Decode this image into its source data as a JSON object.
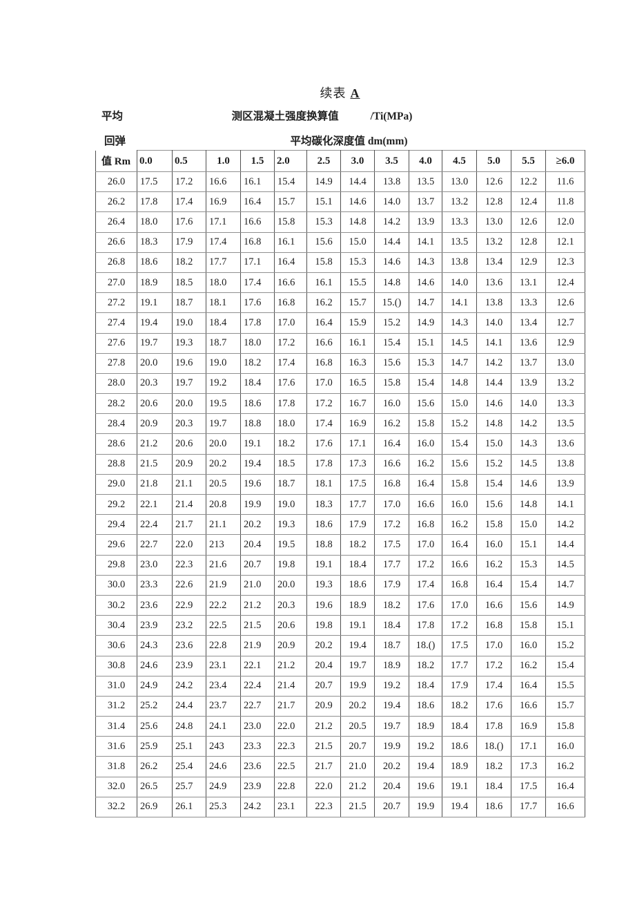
{
  "title": {
    "text": "续表",
    "mark": "A"
  },
  "header": {
    "avg_label": "平均",
    "strength_label": "测区混凝土强度换算值",
    "strength_unit": "/Ti(MPa)",
    "rebound_label": "回弹",
    "depth_label": "平均碳化深度值 dm(mm)",
    "corner_label": "值 Rm"
  },
  "table": {
    "columns": [
      "0.0",
      "0.5",
      "1.0",
      "1.5",
      "2.0",
      "2.5",
      "3.0",
      "3.5",
      "4.0",
      "4.5",
      "5.0",
      "5.5",
      "≥6.0"
    ],
    "rows": [
      {
        "rm": "26.0",
        "values": [
          "17.5",
          "17.2",
          "16.6",
          "16.1",
          "15.4",
          "14.9",
          "14.4",
          "13.8",
          "13.5",
          "13.0",
          "12.6",
          "12.2",
          "11.6"
        ]
      },
      {
        "rm": "26.2",
        "values": [
          "17.8",
          "17.4",
          "16.9",
          "16.4",
          "15.7",
          "15.1",
          "14.6",
          "14.0",
          "13.7",
          "13.2",
          "12.8",
          "12.4",
          "11.8"
        ]
      },
      {
        "rm": "26.4",
        "values": [
          "18.0",
          "17.6",
          "17.1",
          "16.6",
          "15.8",
          "15.3",
          "14.8",
          "14.2",
          "13.9",
          "13.3",
          "13.0",
          "12.6",
          "12.0"
        ]
      },
      {
        "rm": "26.6",
        "values": [
          "18.3",
          "17.9",
          "17.4",
          "16.8",
          "16.1",
          "15.6",
          "15.0",
          "14.4",
          "14.1",
          "13.5",
          "13.2",
          "12.8",
          "12.1"
        ]
      },
      {
        "rm": "26.8",
        "values": [
          "18.6",
          "18.2",
          "17.7",
          "17.1",
          "16.4",
          "15.8",
          "15.3",
          "14.6",
          "14.3",
          "13.8",
          "13.4",
          "12.9",
          "12.3"
        ]
      },
      {
        "rm": "27.0",
        "values": [
          "18.9",
          "18.5",
          "18.0",
          "17.4",
          "16.6",
          "16.1",
          "15.5",
          "14.8",
          "14.6",
          "14.0",
          "13.6",
          "13.1",
          "12.4"
        ]
      },
      {
        "rm": "27.2",
        "values": [
          "19.1",
          "18.7",
          "18.1",
          "17.6",
          "16.8",
          "16.2",
          "15.7",
          "15.()",
          "14.7",
          "14.1",
          "13.8",
          "13.3",
          "12.6"
        ]
      },
      {
        "rm": "27.4",
        "values": [
          "19.4",
          "19.0",
          "18.4",
          "17.8",
          "17.0",
          "16.4",
          "15.9",
          "15.2",
          "14.9",
          "14.3",
          "14.0",
          "13.4",
          "12.7"
        ]
      },
      {
        "rm": "27.6",
        "values": [
          "19.7",
          "19.3",
          "18.7",
          "18.0",
          "17.2",
          "16.6",
          "16.1",
          "15.4",
          "15.1",
          "14.5",
          "14.1",
          "13.6",
          "12.9"
        ]
      },
      {
        "rm": "27.8",
        "values": [
          "20.0",
          "19.6",
          "19.0",
          "18.2",
          "17.4",
          "16.8",
          "16.3",
          "15.6",
          "15.3",
          "14.7",
          "14.2",
          "13.7",
          "13.0"
        ]
      },
      {
        "rm": "28.0",
        "values": [
          "20.3",
          "19.7",
          "19.2",
          "18.4",
          "17.6",
          "17.0",
          "16.5",
          "15.8",
          "15.4",
          "14.8",
          "14.4",
          "13.9",
          "13.2"
        ]
      },
      {
        "rm": "28.2",
        "values": [
          "20.6",
          "20.0",
          "19.5",
          "18.6",
          "17.8",
          "17.2",
          "16.7",
          "16.0",
          "15.6",
          "15.0",
          "14.6",
          "14.0",
          "13.3"
        ]
      },
      {
        "rm": "28.4",
        "values": [
          "20.9",
          "20.3",
          "19.7",
          "18.8",
          "18.0",
          "17.4",
          "16.9",
          "16.2",
          "15.8",
          "15.2",
          "14.8",
          "14.2",
          "13.5"
        ]
      },
      {
        "rm": "28.6",
        "values": [
          "21.2",
          "20.6",
          "20.0",
          "19.1",
          "18.2",
          "17.6",
          "17.1",
          "16.4",
          "16.0",
          "15.4",
          "15.0",
          "14.3",
          "13.6"
        ]
      },
      {
        "rm": "28.8",
        "values": [
          "21.5",
          "20.9",
          "20.2",
          "19.4",
          "18.5",
          "17.8",
          "17.3",
          "16.6",
          "16.2",
          "15.6",
          "15.2",
          "14.5",
          "13.8"
        ]
      },
      {
        "rm": "29.0",
        "values": [
          "21.8",
          "21.1",
          "20.5",
          "19.6",
          "18.7",
          "18.1",
          "17.5",
          "16.8",
          "16.4",
          "15.8",
          "15.4",
          "14.6",
          "13.9"
        ]
      },
      {
        "rm": "29.2",
        "values": [
          "22.1",
          "21.4",
          "20.8",
          "19.9",
          "19.0",
          "18.3",
          "17.7",
          "17.0",
          "16.6",
          "16.0",
          "15.6",
          "14.8",
          "14.1"
        ]
      },
      {
        "rm": "29.4",
        "values": [
          "22.4",
          "21.7",
          "21.1",
          "20.2",
          "19.3",
          "18.6",
          "17.9",
          "17.2",
          "16.8",
          "16.2",
          "15.8",
          "15.0",
          "14.2"
        ]
      },
      {
        "rm": "29.6",
        "values": [
          "22.7",
          "22.0",
          "213",
          "20.4",
          "19.5",
          "18.8",
          "18.2",
          "17.5",
          "17.0",
          "16.4",
          "16.0",
          "15.1",
          "14.4"
        ]
      },
      {
        "rm": "29.8",
        "values": [
          "23.0",
          "22.3",
          "21.6",
          "20.7",
          "19.8",
          "19.1",
          "18.4",
          "17.7",
          "17.2",
          "16.6",
          "16.2",
          "15.3",
          "14.5"
        ]
      },
      {
        "rm": "30.0",
        "values": [
          "23.3",
          "22.6",
          "21.9",
          "21.0",
          "20.0",
          "19.3",
          "18.6",
          "17.9",
          "17.4",
          "16.8",
          "16.4",
          "15.4",
          "14.7"
        ]
      },
      {
        "rm": "30.2",
        "values": [
          "23.6",
          "22.9",
          "22.2",
          "21.2",
          "20.3",
          "19.6",
          "18.9",
          "18.2",
          "17.6",
          "17.0",
          "16.6",
          "15.6",
          "14.9"
        ]
      },
      {
        "rm": "30.4",
        "values": [
          "23.9",
          "23.2",
          "22.5",
          "21.5",
          "20.6",
          "19.8",
          "19.1",
          "18.4",
          "17.8",
          "17.2",
          "16.8",
          "15.8",
          "15.1"
        ]
      },
      {
        "rm": "30.6",
        "values": [
          "24.3",
          "23.6",
          "22.8",
          "21.9",
          "20.9",
          "20.2",
          "19.4",
          "18.7",
          "18.()",
          "17.5",
          "17.0",
          "16.0",
          "15.2"
        ]
      },
      {
        "rm": "30.8",
        "values": [
          "24.6",
          "23.9",
          "23.1",
          "22.1",
          "21.2",
          "20.4",
          "19.7",
          "18.9",
          "18.2",
          "17.7",
          "17.2",
          "16.2",
          "15.4"
        ]
      },
      {
        "rm": "31.0",
        "values": [
          "24.9",
          "24.2",
          "23.4",
          "22.4",
          "21.4",
          "20.7",
          "19.9",
          "19.2",
          "18.4",
          "17.9",
          "17.4",
          "16.4",
          "15.5"
        ]
      },
      {
        "rm": "31.2",
        "values": [
          "25.2",
          "24.4",
          "23.7",
          "22.7",
          "21.7",
          "20.9",
          "20.2",
          "19.4",
          "18.6",
          "18.2",
          "17.6",
          "16.6",
          "15.7"
        ]
      },
      {
        "rm": "31.4",
        "values": [
          "25.6",
          "24.8",
          "24.1",
          "23.0",
          "22.0",
          "21.2",
          "20.5",
          "19.7",
          "18.9",
          "18.4",
          "17.8",
          "16.9",
          "15.8"
        ]
      },
      {
        "rm": "31.6",
        "values": [
          "25.9",
          "25.1",
          "243",
          "23.3",
          "22.3",
          "21.5",
          "20.7",
          "19.9",
          "19.2",
          "18.6",
          "18.()",
          "17.1",
          "16.0"
        ]
      },
      {
        "rm": "31.8",
        "values": [
          "26.2",
          "25.4",
          "24.6",
          "23.6",
          "22.5",
          "21.7",
          "21.0",
          "20.2",
          "19.4",
          "18.9",
          "18.2",
          "17.3",
          "16.2"
        ]
      },
      {
        "rm": "32.0",
        "values": [
          "26.5",
          "25.7",
          "24.9",
          "23.9",
          "22.8",
          "22.0",
          "21.2",
          "20.4",
          "19.6",
          "19.1",
          "18.4",
          "17.5",
          "16.4"
        ]
      },
      {
        "rm": "32.2",
        "values": [
          "26.9",
          "26.1",
          "25.3",
          "24.2",
          "23.1",
          "22.3",
          "21.5",
          "20.7",
          "19.9",
          "19.4",
          "18.6",
          "17.7",
          "16.6"
        ]
      }
    ]
  }
}
